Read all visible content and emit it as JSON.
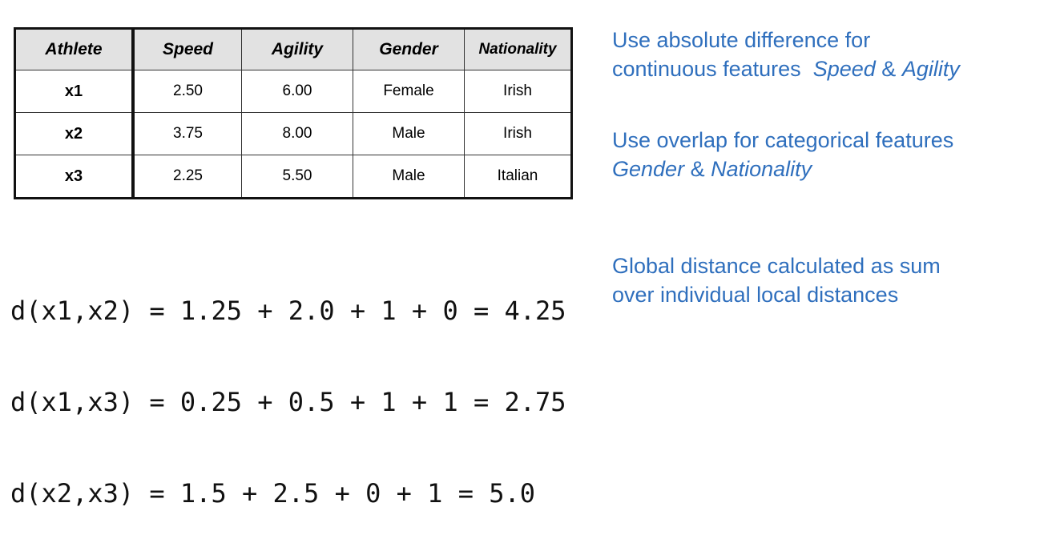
{
  "table": {
    "headers": [
      "Athlete",
      "Speed",
      "Agility",
      "Gender",
      "Nationality"
    ],
    "rows": [
      [
        "x1",
        "2.50",
        "6.00",
        "Female",
        "Irish"
      ],
      [
        "x2",
        "3.75",
        "8.00",
        "Male",
        "Irish"
      ],
      [
        "x3",
        "2.25",
        "5.50",
        "Male",
        "Italian"
      ]
    ]
  },
  "notes": {
    "continuous": {
      "line1": "Use absolute difference for",
      "line2_prefix": "continuous features",
      "feature_a": "Speed",
      "joiner": "&",
      "feature_b": "Agility"
    },
    "categorical": {
      "line1": "Use overlap for categorical features",
      "feature_a": "Gender",
      "joiner": "&",
      "feature_b": "Nationality"
    },
    "global": {
      "line1": "Global distance calculated as sum",
      "line2": "over individual local distances"
    }
  },
  "formulas": [
    "d(x1,x2) = 1.25 + 2.0 + 1 + 0 = 4.25",
    "d(x1,x3) = 0.25 + 0.5 + 1 + 1 = 2.75",
    "d(x2,x3) = 1.5 + 2.5 + 0 + 1 = 5.0"
  ],
  "colors": {
    "note_text": "#2f6fbd",
    "header_bg": "#e2e2e2"
  }
}
